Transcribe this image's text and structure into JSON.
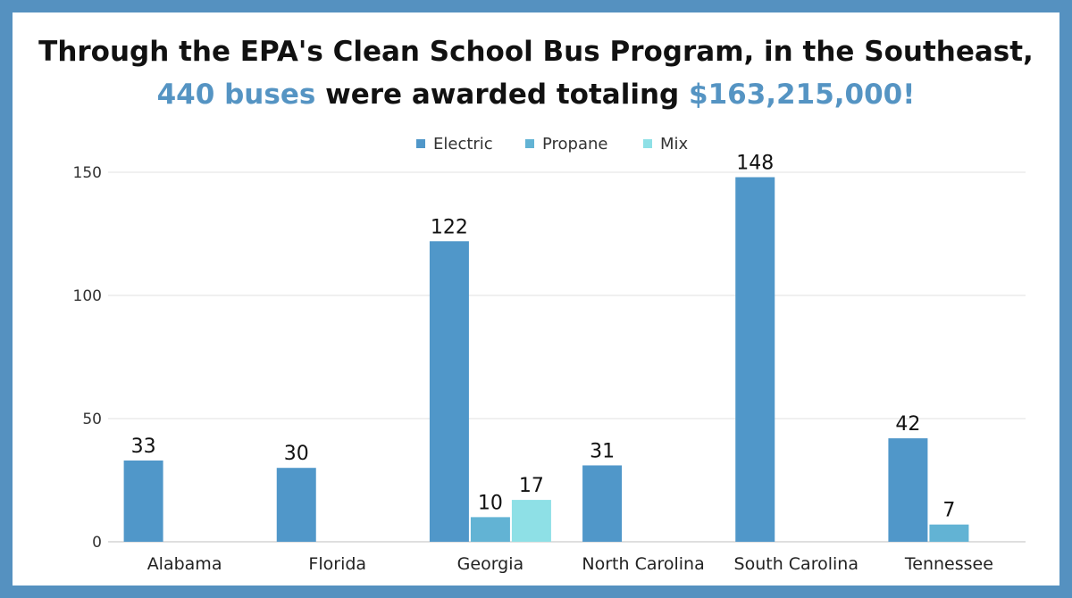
{
  "headline": {
    "line1": "Through the EPA's Clean School Bus Program, in the Southeast,",
    "line2_highlight1": "440 buses",
    "line2_middle": " were awarded totaling ",
    "line2_highlight2": "$163,215,000!"
  },
  "colors": {
    "border": "#5591c0",
    "accent": "#5594c3"
  },
  "chart_data": {
    "type": "bar",
    "categories": [
      "Alabama",
      "Florida",
      "Georgia",
      "North Carolina",
      "South Carolina",
      "Tennessee"
    ],
    "series": [
      {
        "name": "Electric",
        "color": "#5097c9",
        "values": [
          33,
          30,
          122,
          31,
          148,
          42
        ]
      },
      {
        "name": "Propane",
        "color": "#62b3d4",
        "values": [
          null,
          null,
          10,
          null,
          null,
          7
        ]
      },
      {
        "name": "Mix",
        "color": "#8ee0e6",
        "values": [
          null,
          null,
          17,
          null,
          null,
          null
        ]
      }
    ],
    "ylim": [
      0,
      150
    ],
    "yticks": [
      0,
      50,
      100,
      150
    ],
    "grid": true,
    "legend_position": "top-center",
    "title": "",
    "xlabel": "",
    "ylabel": ""
  }
}
